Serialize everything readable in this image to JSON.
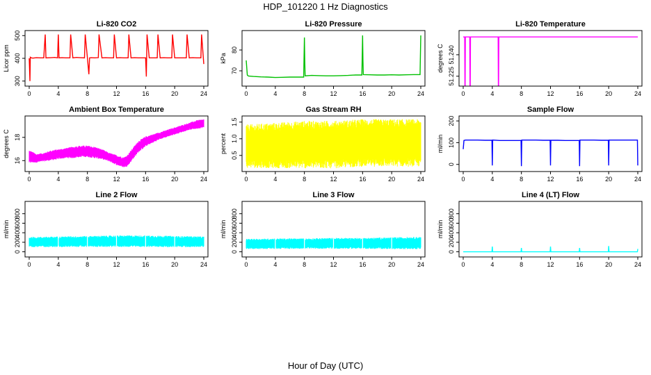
{
  "figure": {
    "title": "HDP_101220  1 Hz Diagnostics",
    "xlabel": "Hour of Day (UTC)"
  },
  "chart_data": [
    {
      "type": "line",
      "title": "Li-820 CO2",
      "ylabel": "Licor ppm",
      "color": "#ff0000",
      "xlim": [
        0,
        24
      ],
      "ylim": [
        290,
        510
      ],
      "xticks": [
        0,
        4,
        8,
        12,
        16,
        20,
        24
      ],
      "yticks": [
        300,
        400,
        500
      ],
      "series": [
        {
          "x": [
            0,
            0.1,
            0.15,
            0.3,
            0.5,
            1,
            1.5,
            2,
            2.2,
            2.3,
            3,
            3.5,
            3.9,
            4.0,
            4.1,
            4.5,
            5,
            5.6,
            5.7,
            6,
            6.5,
            7,
            7.6,
            7.7,
            8,
            8.2,
            8.3,
            8.5,
            9,
            9.5,
            9.6,
            10,
            10.5,
            11,
            11.6,
            11.7,
            12,
            12.5,
            13,
            13.6,
            13.7,
            14,
            14.5,
            15,
            15.5,
            16,
            16.1,
            16.2,
            16.5,
            17,
            17.6,
            17.7,
            18,
            18.5,
            19,
            19.6,
            19.7,
            20,
            20.5,
            21,
            21.6,
            21.7,
            22,
            22.5,
            23,
            23.6,
            23.7,
            24
          ],
          "y": [
            400,
            300,
            405,
            402,
            401,
            403,
            402,
            402,
            505,
            402,
            403,
            404,
            402,
            505,
            402,
            403,
            402,
            402,
            505,
            402,
            404,
            403,
            402,
            505,
            402,
            330,
            402,
            403,
            402,
            403,
            505,
            402,
            403,
            402,
            402,
            505,
            402,
            403,
            402,
            402,
            505,
            402,
            403,
            402,
            402,
            402,
            320,
            505,
            402,
            402,
            402,
            505,
            402,
            403,
            402,
            402,
            505,
            402,
            402,
            402,
            402,
            505,
            402,
            403,
            402,
            402,
            505,
            375
          ]
        }
      ]
    },
    {
      "type": "line",
      "title": "Li-820 Pressure",
      "ylabel": "kPa",
      "color": "#00c000",
      "xlim": [
        0,
        24
      ],
      "ylim": [
        64,
        88
      ],
      "xticks": [
        0,
        4,
        8,
        12,
        16,
        20,
        24
      ],
      "yticks": [
        70,
        80
      ],
      "series": [
        {
          "x": [
            0,
            0.15,
            0.3,
            1,
            2,
            3,
            4,
            5,
            6,
            7,
            7.9,
            8.0,
            8.05,
            8.1,
            9,
            10,
            11,
            12,
            13,
            14,
            15,
            15.9,
            16.0,
            16.05,
            16.1,
            17,
            18,
            19,
            20,
            21,
            22,
            23,
            23.9,
            24.0
          ],
          "y": [
            75,
            68,
            67.5,
            67.3,
            67.1,
            67,
            66.8,
            66.9,
            67,
            67,
            67,
            86,
            75,
            67.6,
            67.8,
            67.7,
            67.6,
            67.6,
            67.7,
            67.8,
            68,
            68,
            87,
            75,
            68.2,
            68.1,
            68,
            68,
            68.1,
            68,
            68.1,
            68.2,
            68.2,
            87
          ]
        }
      ]
    },
    {
      "type": "line",
      "title": "Li-820 Temperature",
      "ylabel": "degrees C",
      "color": "#ff00ff",
      "xlim": [
        0,
        24
      ],
      "ylim": [
        51.22,
        51.255
      ],
      "xticks": [
        0,
        4,
        8,
        12,
        16,
        20,
        24
      ],
      "yticks": [
        51.225,
        51.24
      ],
      "ytick_labels": [
        "51.225",
        "51.240"
      ],
      "series": [
        {
          "x": [
            0,
            0.2,
            0.25,
            0.3,
            0.9,
            0.95,
            1.0,
            4.8,
            4.85,
            4.9,
            24
          ],
          "y": [
            51.2525,
            51.2525,
            51.2,
            51.2525,
            51.2525,
            51.2,
            51.2525,
            51.2525,
            51.2,
            51.2525,
            51.2525
          ]
        }
      ]
    },
    {
      "type": "area",
      "title": "Ambient Box Temperature",
      "ylabel": "degrees C",
      "color": "#ff00ff",
      "xlim": [
        0,
        24
      ],
      "ylim": [
        15.3,
        19.6
      ],
      "xticks": [
        0,
        4,
        8,
        12,
        16,
        20,
        24
      ],
      "yticks": [
        16,
        18
      ],
      "series": [
        {
          "name": "upper",
          "x": [
            0,
            1,
            2,
            3,
            4,
            5,
            6,
            7,
            8,
            9,
            10,
            11,
            12,
            13,
            13.5,
            14,
            15,
            16,
            17,
            18,
            19,
            20,
            21,
            22,
            23,
            24
          ],
          "y": [
            16.8,
            16.5,
            16.6,
            16.8,
            16.9,
            17.0,
            17.1,
            17.2,
            17.2,
            17.1,
            16.9,
            16.6,
            16.4,
            16.2,
            16.4,
            16.8,
            17.6,
            18.0,
            18.2,
            18.4,
            18.6,
            18.8,
            19.0,
            19.2,
            19.4,
            19.5
          ]
        },
        {
          "name": "lower",
          "x": [
            0,
            1,
            2,
            3,
            4,
            5,
            6,
            7,
            8,
            9,
            10,
            11,
            12,
            13,
            13.5,
            14,
            15,
            16,
            17,
            18,
            19,
            20,
            21,
            22,
            23,
            24
          ],
          "y": [
            15.9,
            15.9,
            16.0,
            16.1,
            16.2,
            16.3,
            16.3,
            16.4,
            16.4,
            16.3,
            16.2,
            16.0,
            15.7,
            15.5,
            15.6,
            16.0,
            16.8,
            17.3,
            17.6,
            17.9,
            18.1,
            18.3,
            18.5,
            18.7,
            18.8,
            18.9
          ]
        }
      ]
    },
    {
      "type": "area",
      "title": "Gas Stream RH",
      "ylabel": "percent",
      "color": "#ffff00",
      "xlim": [
        0,
        24
      ],
      "ylim": [
        0.1,
        1.6
      ],
      "xticks": [
        0,
        4,
        8,
        12,
        16,
        20,
        24
      ],
      "yticks": [
        0.5,
        1.0,
        1.5
      ],
      "ytick_labels": [
        "0.5",
        "1.0",
        "1.5"
      ],
      "series": [
        {
          "name": "upper",
          "x": [
            0,
            4,
            8,
            12,
            16,
            20,
            24
          ],
          "y": [
            1.3,
            1.35,
            1.4,
            1.4,
            1.45,
            1.45,
            1.45
          ]
        },
        {
          "name": "lower",
          "x": [
            0,
            4,
            8,
            12,
            16,
            20,
            24
          ],
          "y": [
            0.25,
            0.25,
            0.25,
            0.25,
            0.3,
            0.3,
            0.3
          ]
        }
      ]
    },
    {
      "type": "line",
      "title": "Sample Flow",
      "ylabel": "ml/min",
      "color": "#0000ff",
      "xlim": [
        0,
        24
      ],
      "ylim": [
        -20,
        210
      ],
      "xticks": [
        0,
        4,
        8,
        12,
        16,
        20,
        24
      ],
      "yticks": [
        0,
        100,
        200
      ],
      "series": [
        {
          "x": [
            0,
            0.1,
            0.3,
            1,
            2,
            3,
            3.95,
            4.0,
            4.05,
            5,
            6,
            7,
            7.95,
            8.0,
            8.05,
            9,
            10,
            11,
            11.95,
            12.0,
            12.05,
            13,
            14,
            15,
            15.95,
            16.0,
            16.05,
            17,
            18,
            19,
            19.95,
            20.0,
            20.05,
            21,
            22,
            23,
            23.95,
            24.0
          ],
          "y": [
            70,
            110,
            112,
            112,
            112,
            111,
            111,
            -5,
            112,
            110,
            110,
            110,
            110,
            -8,
            112,
            112,
            112,
            111,
            111,
            -5,
            111,
            111,
            110,
            110,
            110,
            -8,
            112,
            112,
            112,
            111,
            111,
            -5,
            112,
            112,
            112,
            112,
            112,
            -5
          ]
        }
      ]
    },
    {
      "type": "area",
      "title": "Line 2 Flow",
      "ylabel": "ml/min",
      "color": "#00ffff",
      "xlim": [
        0,
        24
      ],
      "ylim": [
        -50,
        1000
      ],
      "xticks": [
        0,
        4,
        8,
        12,
        16,
        20,
        24
      ],
      "yticks": [
        0,
        200,
        400,
        600,
        800
      ],
      "series": [
        {
          "name": "upper",
          "x": [
            0,
            4,
            8,
            12,
            16,
            20,
            24
          ],
          "y": [
            290,
            300,
            310,
            320,
            320,
            310,
            300
          ]
        },
        {
          "name": "lower",
          "x": [
            0,
            4,
            8,
            12,
            16,
            20,
            24
          ],
          "y": [
            120,
            120,
            125,
            125,
            125,
            120,
            120
          ]
        }
      ]
    },
    {
      "type": "area",
      "title": "Line 3 Flow",
      "ylabel": "ml/min",
      "color": "#00ffff",
      "xlim": [
        0,
        24
      ],
      "ylim": [
        -50,
        1000
      ],
      "xticks": [
        0,
        4,
        8,
        12,
        16,
        20,
        24
      ],
      "yticks": [
        0,
        200,
        400,
        600,
        800
      ],
      "series": [
        {
          "name": "upper",
          "x": [
            0,
            4,
            8,
            12,
            16,
            20,
            24
          ],
          "y": [
            250,
            260,
            260,
            270,
            270,
            280,
            290
          ]
        },
        {
          "name": "lower",
          "x": [
            0,
            4,
            8,
            12,
            16,
            20,
            24
          ],
          "y": [
            80,
            80,
            85,
            85,
            85,
            80,
            80
          ]
        }
      ]
    },
    {
      "type": "line",
      "title": "Line 4 (LT) Flow",
      "ylabel": "ml/min",
      "color": "#00ffff",
      "xlim": [
        0,
        24
      ],
      "ylim": [
        -50,
        1000
      ],
      "xticks": [
        0,
        4,
        8,
        12,
        16,
        20,
        24
      ],
      "yticks": [
        0,
        200,
        400,
        600,
        800
      ],
      "series": [
        {
          "x": [
            0,
            3.95,
            4.0,
            4.05,
            7.95,
            8.0,
            8.05,
            11.95,
            12.0,
            12.05,
            15.95,
            16.0,
            16.05,
            19.95,
            20.0,
            20.05,
            23.95,
            24.0
          ],
          "y": [
            0,
            0,
            110,
            0,
            0,
            80,
            0,
            0,
            110,
            0,
            0,
            80,
            0,
            0,
            120,
            0,
            0,
            60
          ]
        }
      ]
    }
  ]
}
